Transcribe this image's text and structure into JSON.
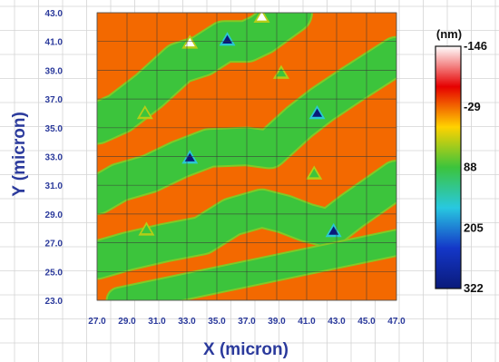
{
  "chart_data": {
    "type": "heatmap",
    "title": "",
    "xlabel": "X (micron)",
    "ylabel": "Y (micron)",
    "x_ticks": [
      "27.0",
      "29.0",
      "31.0",
      "33.0",
      "35.0",
      "37.0",
      "39.0",
      "41.0",
      "43.0",
      "45.0",
      "47.0"
    ],
    "y_ticks": [
      "23.0",
      "25.0",
      "27.0",
      "29.0",
      "31.0",
      "33.0",
      "35.0",
      "37.0",
      "39.0",
      "41.0",
      "43.0"
    ],
    "xlim": [
      27.0,
      47.0
    ],
    "ylim": [
      23.0,
      43.0
    ],
    "grid": true,
    "colorbar": {
      "unit": "(nm)",
      "labels": [
        "-146",
        "-29",
        "88",
        "205",
        "322"
      ],
      "range": [
        -146,
        322
      ],
      "colors": [
        "#ffffff",
        "#e60000",
        "#ffd200",
        "#3cc43c",
        "#28c8e0",
        "#1437c8",
        "#0a1a7a"
      ]
    },
    "background_value": -29,
    "band_value": 88,
    "pit_value": 205,
    "bands": [
      [
        [
          27,
          35.3
        ],
        [
          28.5,
          36.0
        ],
        [
          30.5,
          37.6
        ],
        [
          32.5,
          39.5
        ],
        [
          34.0,
          40.0
        ],
        [
          35.5,
          41.0
        ],
        [
          37.0,
          41.0
        ],
        [
          38.0,
          41.5
        ],
        [
          40.0,
          43.0
        ]
      ],
      [
        [
          27,
          30.3
        ],
        [
          28.5,
          31.2
        ],
        [
          30.5,
          31.8
        ],
        [
          32.5,
          32.8
        ],
        [
          34.5,
          33.6
        ],
        [
          37.0,
          33.7
        ],
        [
          38.5,
          33.5
        ],
        [
          40.5,
          35.4
        ],
        [
          42.0,
          36.6
        ],
        [
          44.0,
          38.0
        ],
        [
          47.0,
          40.0
        ]
      ],
      [
        [
          27,
          25.8
        ],
        [
          29.0,
          26.4
        ],
        [
          31.5,
          27.0
        ],
        [
          34.0,
          27.5
        ],
        [
          36.0,
          28.8
        ],
        [
          38.0,
          29.4
        ],
        [
          39.5,
          29.0
        ],
        [
          41.0,
          28.4
        ],
        [
          42.5,
          28.0
        ],
        [
          44.0,
          29.2
        ],
        [
          47.0,
          31.4
        ]
      ],
      [
        [
          28.5,
          23.0
        ],
        [
          47.0,
          27.0
        ]
      ]
    ],
    "band_widths": [
      2.6,
      2.4,
      2.4,
      1.6
    ],
    "features": [
      {
        "x": 35.7,
        "y": 41.1,
        "value": 322
      },
      {
        "x": 38.0,
        "y": 42.7,
        "value": -146
      },
      {
        "x": 33.2,
        "y": 40.9,
        "value": -146
      },
      {
        "x": 33.2,
        "y": 32.9,
        "value": 322
      },
      {
        "x": 41.7,
        "y": 36.0,
        "value": 322
      },
      {
        "x": 42.8,
        "y": 27.8,
        "value": 322
      },
      {
        "x": 30.2,
        "y": 36.0,
        "value": 88
      },
      {
        "x": 39.3,
        "y": 38.8,
        "value": 88
      },
      {
        "x": 41.5,
        "y": 31.8,
        "value": 88
      },
      {
        "x": 30.3,
        "y": 27.9,
        "value": 88
      }
    ]
  }
}
